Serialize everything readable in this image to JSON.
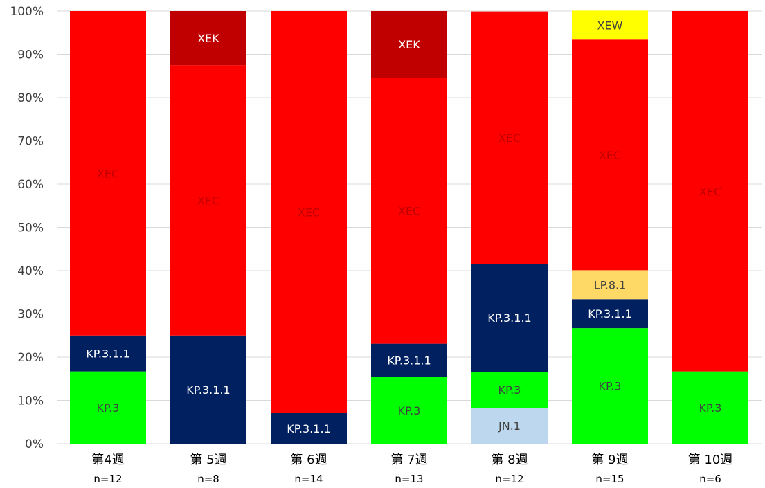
{
  "chart_data": {
    "type": "bar",
    "stacked": true,
    "grid": true,
    "legend": "none",
    "ylim": [
      0,
      100
    ],
    "yticks": [
      "0%",
      "10%",
      "20%",
      "30%",
      "40%",
      "50%",
      "60%",
      "70%",
      "80%",
      "90%",
      "100%"
    ],
    "categories": [
      "第4週",
      "第 5週",
      "第 6週",
      "第 7週",
      "第 8週",
      "第 9週",
      "第 10週"
    ],
    "sample_sizes": [
      "n=12",
      "n=8",
      "n=14",
      "n=13",
      "n=12",
      "n=15",
      "n=6"
    ],
    "colors": {
      "JN.1": "#bdd7ee",
      "KP.3": "#00ff00",
      "KP.3.1.1": "#002060",
      "LP.8.1": "#ffd966",
      "XEC": "#ff0000",
      "XEK": "#c00000",
      "XEW": "#ffff00"
    },
    "label_colors": {
      "JN.1": "#404040",
      "KP.3": "#404040",
      "KP.3.1.1": "#ffffff",
      "LP.8.1": "#404040",
      "XEC": "#c00000",
      "XEK": "#ffffff",
      "XEW": "#404040"
    },
    "bars": [
      {
        "category": "第4週",
        "segments": [
          {
            "label": "KP.3",
            "value": 16.7
          },
          {
            "label": "KP.3.1.1",
            "value": 8.3
          },
          {
            "label": "XEC",
            "value": 75.0
          }
        ]
      },
      {
        "category": "第 5週",
        "segments": [
          {
            "label": "KP.3.1.1",
            "value": 25.0
          },
          {
            "label": "XEC",
            "value": 62.5
          },
          {
            "label": "XEK",
            "value": 12.5
          }
        ]
      },
      {
        "category": "第 6週",
        "segments": [
          {
            "label": "KP.3.1.1",
            "value": 7.1
          },
          {
            "label": "XEC",
            "value": 92.9
          }
        ]
      },
      {
        "category": "第 7週",
        "segments": [
          {
            "label": "KP.3",
            "value": 15.4
          },
          {
            "label": "KP.3.1.1",
            "value": 7.7
          },
          {
            "label": "XEC",
            "value": 61.5
          },
          {
            "label": "XEK",
            "value": 15.4
          }
        ]
      },
      {
        "category": "第 8週",
        "segments": [
          {
            "label": "JN.1",
            "value": 8.3
          },
          {
            "label": "KP.3",
            "value": 8.3
          },
          {
            "label": "KP.3.1.1",
            "value": 25.0
          },
          {
            "label": "XEC",
            "value": 58.3
          }
        ]
      },
      {
        "category": "第 9週",
        "segments": [
          {
            "label": "KP.3",
            "value": 26.7
          },
          {
            "label": "KP.3.1.1",
            "value": 6.7
          },
          {
            "label": "LP.8.1",
            "value": 6.7
          },
          {
            "label": "XEC",
            "value": 53.3
          },
          {
            "label": "XEW",
            "value": 6.7
          }
        ]
      },
      {
        "category": "第 10週",
        "segments": [
          {
            "label": "KP.3",
            "value": 16.7
          },
          {
            "label": "XEC",
            "value": 83.3
          }
        ]
      }
    ]
  }
}
